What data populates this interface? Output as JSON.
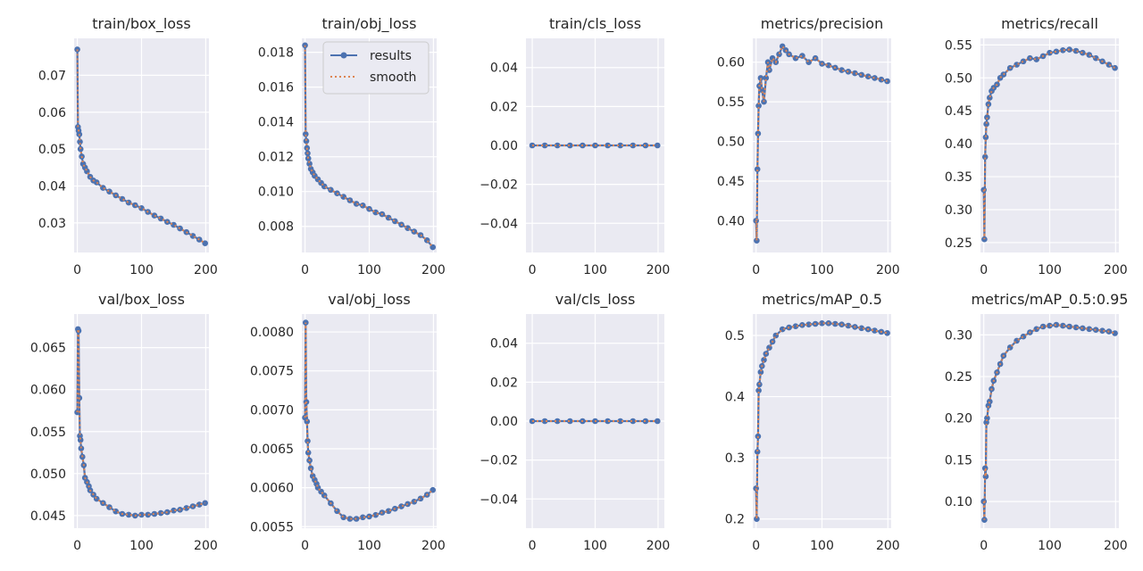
{
  "legend": {
    "results": "results",
    "smooth": "smooth"
  },
  "colors": {
    "results": "#4c72b0",
    "smooth": "#dd8452",
    "bg": "#eaeaf2",
    "grid": "#ffffff"
  },
  "chart_data": [
    {
      "type": "line",
      "title": "train/box_loss",
      "xlim": [
        -5,
        205
      ],
      "ylim": [
        0.022,
        0.08
      ],
      "xticks": [
        0,
        100,
        200
      ],
      "yticks": [
        0.03,
        0.04,
        0.05,
        0.06,
        0.07
      ],
      "ytick_labels": [
        "0.03",
        "0.04",
        "0.05",
        "0.06",
        "0.07"
      ],
      "x": [
        0,
        1,
        2,
        3,
        4,
        5,
        7,
        9,
        12,
        15,
        20,
        25,
        30,
        40,
        50,
        60,
        70,
        80,
        90,
        100,
        110,
        120,
        130,
        140,
        150,
        160,
        170,
        180,
        190,
        199
      ],
      "y": [
        0.077,
        0.056,
        0.055,
        0.054,
        0.052,
        0.05,
        0.048,
        0.046,
        0.045,
        0.044,
        0.0425,
        0.0415,
        0.041,
        0.0395,
        0.0385,
        0.0375,
        0.0365,
        0.0355,
        0.0348,
        0.034,
        0.033,
        0.032,
        0.0312,
        0.0303,
        0.0295,
        0.0285,
        0.0275,
        0.0265,
        0.0255,
        0.0245
      ]
    },
    {
      "type": "line",
      "title": "train/obj_loss",
      "xlim": [
        -5,
        205
      ],
      "ylim": [
        0.0065,
        0.0188
      ],
      "xticks": [
        0,
        100,
        200
      ],
      "yticks": [
        0.008,
        0.01,
        0.012,
        0.014,
        0.016,
        0.018
      ],
      "ytick_labels": [
        "0.008",
        "0.010",
        "0.012",
        "0.014",
        "0.016",
        "0.018"
      ],
      "x": [
        0,
        1,
        2,
        3,
        4,
        5,
        7,
        9,
        12,
        15,
        20,
        25,
        30,
        40,
        50,
        60,
        70,
        80,
        90,
        100,
        110,
        120,
        130,
        140,
        150,
        160,
        170,
        180,
        190,
        199
      ],
      "y": [
        0.0184,
        0.0133,
        0.0129,
        0.0125,
        0.0122,
        0.0119,
        0.0116,
        0.0113,
        0.0111,
        0.0109,
        0.0107,
        0.0105,
        0.0103,
        0.0101,
        0.0099,
        0.0097,
        0.0095,
        0.0093,
        0.0092,
        0.009,
        0.0088,
        0.0087,
        0.0085,
        0.0083,
        0.0081,
        0.0079,
        0.0077,
        0.0075,
        0.0072,
        0.0068
      ]
    },
    {
      "type": "line",
      "title": "train/cls_loss",
      "xlim": [
        -10,
        210
      ],
      "ylim": [
        -0.055,
        0.055
      ],
      "xticks": [
        0,
        100,
        200
      ],
      "yticks": [
        -0.04,
        -0.02,
        0.0,
        0.02,
        0.04
      ],
      "ytick_labels": [
        "−0.04",
        "−0.02",
        "0.00",
        "0.02",
        "0.04"
      ],
      "x": [
        0,
        20,
        40,
        60,
        80,
        100,
        120,
        140,
        160,
        180,
        199
      ],
      "y": [
        0,
        0,
        0,
        0,
        0,
        0,
        0,
        0,
        0,
        0,
        0
      ]
    },
    {
      "type": "line",
      "title": "metrics/precision",
      "xlim": [
        -5,
        205
      ],
      "ylim": [
        0.36,
        0.63
      ],
      "xticks": [
        0,
        100,
        200
      ],
      "yticks": [
        0.4,
        0.45,
        0.5,
        0.55,
        0.6
      ],
      "ytick_labels": [
        "0.40",
        "0.45",
        "0.50",
        "0.55",
        "0.60"
      ],
      "x": [
        0,
        1,
        2,
        3,
        4,
        5,
        7,
        9,
        12,
        15,
        18,
        20,
        25,
        30,
        35,
        40,
        45,
        50,
        60,
        70,
        80,
        90,
        100,
        110,
        120,
        130,
        140,
        150,
        160,
        170,
        180,
        190,
        199
      ],
      "y": [
        0.4,
        0.375,
        0.465,
        0.51,
        0.545,
        0.57,
        0.58,
        0.565,
        0.55,
        0.58,
        0.6,
        0.59,
        0.605,
        0.6,
        0.61,
        0.62,
        0.615,
        0.61,
        0.605,
        0.608,
        0.6,
        0.605,
        0.598,
        0.596,
        0.593,
        0.59,
        0.588,
        0.586,
        0.584,
        0.582,
        0.58,
        0.578,
        0.576
      ]
    },
    {
      "type": "line",
      "title": "metrics/recall",
      "xlim": [
        -5,
        205
      ],
      "ylim": [
        0.235,
        0.56
      ],
      "xticks": [
        0,
        100,
        200
      ],
      "yticks": [
        0.25,
        0.3,
        0.35,
        0.4,
        0.45,
        0.5,
        0.55
      ],
      "ytick_labels": [
        "0.25",
        "0.30",
        "0.35",
        "0.40",
        "0.45",
        "0.50",
        "0.55"
      ],
      "x": [
        0,
        1,
        2,
        3,
        4,
        5,
        7,
        9,
        12,
        15,
        20,
        25,
        30,
        40,
        50,
        60,
        70,
        80,
        90,
        100,
        110,
        120,
        130,
        140,
        150,
        160,
        170,
        180,
        190,
        199
      ],
      "y": [
        0.33,
        0.255,
        0.38,
        0.41,
        0.43,
        0.44,
        0.46,
        0.47,
        0.48,
        0.485,
        0.49,
        0.5,
        0.505,
        0.515,
        0.52,
        0.525,
        0.53,
        0.528,
        0.533,
        0.538,
        0.54,
        0.542,
        0.543,
        0.541,
        0.538,
        0.535,
        0.53,
        0.525,
        0.52,
        0.515
      ]
    },
    {
      "type": "line",
      "title": "val/box_loss",
      "xlim": [
        -5,
        205
      ],
      "ylim": [
        0.0435,
        0.069
      ],
      "xticks": [
        0,
        100,
        200
      ],
      "yticks": [
        0.045,
        0.05,
        0.055,
        0.06,
        0.065
      ],
      "ytick_labels": [
        "0.045",
        "0.050",
        "0.055",
        "0.060",
        "0.065"
      ],
      "x": [
        0,
        1,
        2,
        3,
        4,
        5,
        6,
        8,
        10,
        12,
        15,
        18,
        20,
        25,
        30,
        40,
        50,
        60,
        70,
        80,
        90,
        100,
        110,
        120,
        130,
        140,
        150,
        160,
        170,
        180,
        190,
        199
      ],
      "y": [
        0.0573,
        0.0672,
        0.067,
        0.059,
        0.0545,
        0.054,
        0.053,
        0.052,
        0.051,
        0.0495,
        0.049,
        0.0485,
        0.048,
        0.0475,
        0.047,
        0.0465,
        0.046,
        0.0455,
        0.0452,
        0.0451,
        0.045,
        0.0451,
        0.0451,
        0.0452,
        0.0453,
        0.0454,
        0.0456,
        0.0457,
        0.0459,
        0.0461,
        0.0463,
        0.0465
      ]
    },
    {
      "type": "line",
      "title": "val/obj_loss",
      "xlim": [
        -5,
        205
      ],
      "ylim": [
        0.00548,
        0.00823
      ],
      "xticks": [
        0,
        100,
        200
      ],
      "yticks": [
        0.0055,
        0.006,
        0.0065,
        0.007,
        0.0075,
        0.008
      ],
      "ytick_labels": [
        "0.0055",
        "0.0060",
        "0.0065",
        "0.0070",
        "0.0075",
        "0.0080"
      ],
      "x": [
        0,
        1,
        2,
        3,
        4,
        5,
        7,
        9,
        12,
        15,
        18,
        20,
        25,
        30,
        40,
        50,
        60,
        70,
        80,
        90,
        100,
        110,
        120,
        130,
        140,
        150,
        160,
        170,
        180,
        190,
        199
      ],
      "y": [
        0.0069,
        0.00812,
        0.0071,
        0.00685,
        0.0066,
        0.00645,
        0.00635,
        0.00625,
        0.00615,
        0.0061,
        0.00605,
        0.006,
        0.00595,
        0.0059,
        0.0058,
        0.0057,
        0.00562,
        0.0056,
        0.0056,
        0.00562,
        0.00563,
        0.00565,
        0.00568,
        0.0057,
        0.00573,
        0.00576,
        0.00579,
        0.00582,
        0.00586,
        0.00591,
        0.00597
      ]
    },
    {
      "type": "line",
      "title": "val/cls_loss",
      "xlim": [
        -10,
        210
      ],
      "ylim": [
        -0.055,
        0.055
      ],
      "xticks": [
        0,
        100,
        200
      ],
      "yticks": [
        -0.04,
        -0.02,
        0.0,
        0.02,
        0.04
      ],
      "ytick_labels": [
        "−0.04",
        "−0.02",
        "0.00",
        "0.02",
        "0.04"
      ],
      "x": [
        0,
        20,
        40,
        60,
        80,
        100,
        120,
        140,
        160,
        180,
        199
      ],
      "y": [
        0,
        0,
        0,
        0,
        0,
        0,
        0,
        0,
        0,
        0,
        0
      ]
    },
    {
      "type": "line",
      "title": "metrics/mAP_0.5",
      "xlim": [
        -5,
        205
      ],
      "ylim": [
        0.185,
        0.535
      ],
      "xticks": [
        0,
        100,
        200
      ],
      "yticks": [
        0.2,
        0.3,
        0.4,
        0.5
      ],
      "ytick_labels": [
        "0.2",
        "0.3",
        "0.4",
        "0.5"
      ],
      "x": [
        0,
        1,
        2,
        3,
        4,
        5,
        7,
        9,
        12,
        15,
        20,
        25,
        30,
        40,
        50,
        60,
        70,
        80,
        90,
        100,
        110,
        120,
        130,
        140,
        150,
        160,
        170,
        180,
        190,
        199
      ],
      "y": [
        0.25,
        0.2,
        0.31,
        0.335,
        0.41,
        0.42,
        0.44,
        0.45,
        0.46,
        0.47,
        0.48,
        0.49,
        0.5,
        0.51,
        0.513,
        0.515,
        0.517,
        0.518,
        0.519,
        0.52,
        0.52,
        0.519,
        0.518,
        0.516,
        0.514,
        0.512,
        0.51,
        0.508,
        0.506,
        0.504
      ]
    },
    {
      "type": "line",
      "title": "metrics/mAP_0.5:0.95",
      "xlim": [
        -5,
        205
      ],
      "ylim": [
        0.068,
        0.325
      ],
      "xticks": [
        0,
        100,
        200
      ],
      "yticks": [
        0.1,
        0.15,
        0.2,
        0.25,
        0.3
      ],
      "ytick_labels": [
        "0.10",
        "0.15",
        "0.20",
        "0.25",
        "0.30"
      ],
      "x": [
        0,
        1,
        2,
        3,
        4,
        5,
        7,
        9,
        12,
        15,
        20,
        25,
        30,
        40,
        50,
        60,
        70,
        80,
        90,
        100,
        110,
        120,
        130,
        140,
        150,
        160,
        170,
        180,
        190,
        199
      ],
      "y": [
        0.1,
        0.078,
        0.14,
        0.13,
        0.195,
        0.2,
        0.215,
        0.22,
        0.235,
        0.245,
        0.255,
        0.265,
        0.275,
        0.285,
        0.293,
        0.298,
        0.303,
        0.307,
        0.31,
        0.311,
        0.312,
        0.311,
        0.31,
        0.309,
        0.308,
        0.307,
        0.306,
        0.305,
        0.304,
        0.302
      ]
    }
  ]
}
